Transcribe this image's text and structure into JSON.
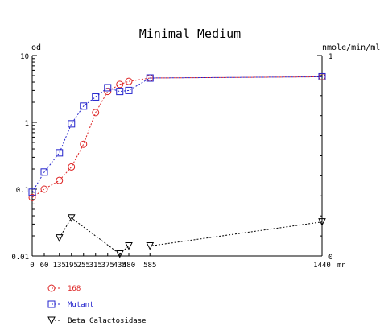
{
  "chart_data": {
    "type": "line",
    "title": "Minimal Medium",
    "ylabel_left": "od",
    "ylabel_right": "nmole/min/ml",
    "xlabel": "mn",
    "x_ticks": [
      0,
      60,
      135,
      195,
      255,
      315,
      375,
      435,
      480,
      585,
      1440
    ],
    "x_tick_labels": [
      "0",
      "60",
      "135",
      "195",
      "255",
      "315",
      "375",
      "435",
      "480",
      "585",
      "1440"
    ],
    "xlim": [
      0,
      1440
    ],
    "y_left": {
      "scale": "log",
      "lim": [
        0.01,
        10
      ],
      "ticks": [
        0.01,
        0.1,
        1,
        10
      ],
      "tick_labels": [
        "0.01",
        "0.1",
        "1",
        "10"
      ]
    },
    "y_right": {
      "scale": "linear",
      "lim": [
        0,
        1
      ],
      "ticks": [
        0,
        1
      ],
      "tick_labels": [
        "0",
        "1"
      ]
    },
    "grid": false,
    "legend_position": "bottom-left",
    "series": [
      {
        "name": "168",
        "axis": "left",
        "color": "#dd2222",
        "marker": "circle",
        "x": [
          0,
          60,
          135,
          195,
          255,
          315,
          375,
          435,
          480,
          585,
          1440
        ],
        "y": [
          0.075,
          0.1,
          0.135,
          0.215,
          0.47,
          1.4,
          2.9,
          3.7,
          4.1,
          4.6,
          4.8
        ]
      },
      {
        "name": "Mutant",
        "axis": "left",
        "color": "#2222cc",
        "marker": "square",
        "x": [
          0,
          60,
          135,
          195,
          255,
          315,
          375,
          435,
          480,
          585,
          1440
        ],
        "y": [
          0.09,
          0.18,
          0.35,
          0.95,
          1.75,
          2.4,
          3.3,
          2.9,
          3.0,
          4.6,
          4.8
        ]
      },
      {
        "name": "Beta Galactosidase",
        "axis": "right",
        "color": "#000000",
        "marker": "triangle-down",
        "x": [
          135,
          195,
          435,
          480,
          585,
          1440
        ],
        "y": [
          0.09,
          0.19,
          0.01,
          0.05,
          0.05,
          0.17
        ]
      }
    ]
  }
}
